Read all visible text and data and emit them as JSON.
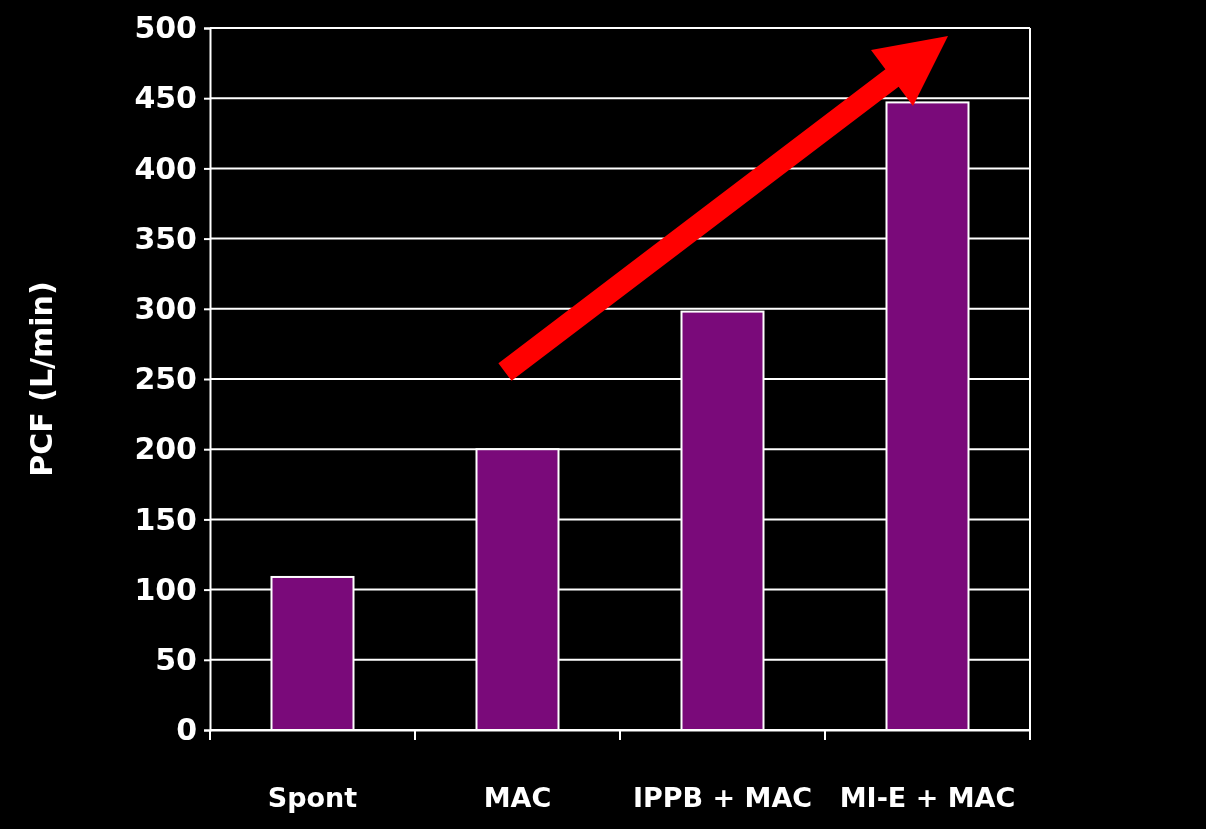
{
  "chart_data": {
    "type": "bar",
    "ylabel": "PCF (L/min)",
    "categories": [
      "Spont",
      "MAC",
      "IPPB + MAC",
      "MI-E + MAC"
    ],
    "values": [
      109,
      200,
      298,
      447
    ],
    "color": "#7a0a7a",
    "ylim": [
      0,
      500
    ],
    "yticks": [
      0,
      50,
      100,
      150,
      200,
      250,
      300,
      350,
      400,
      450,
      500
    ],
    "grid": "y"
  }
}
